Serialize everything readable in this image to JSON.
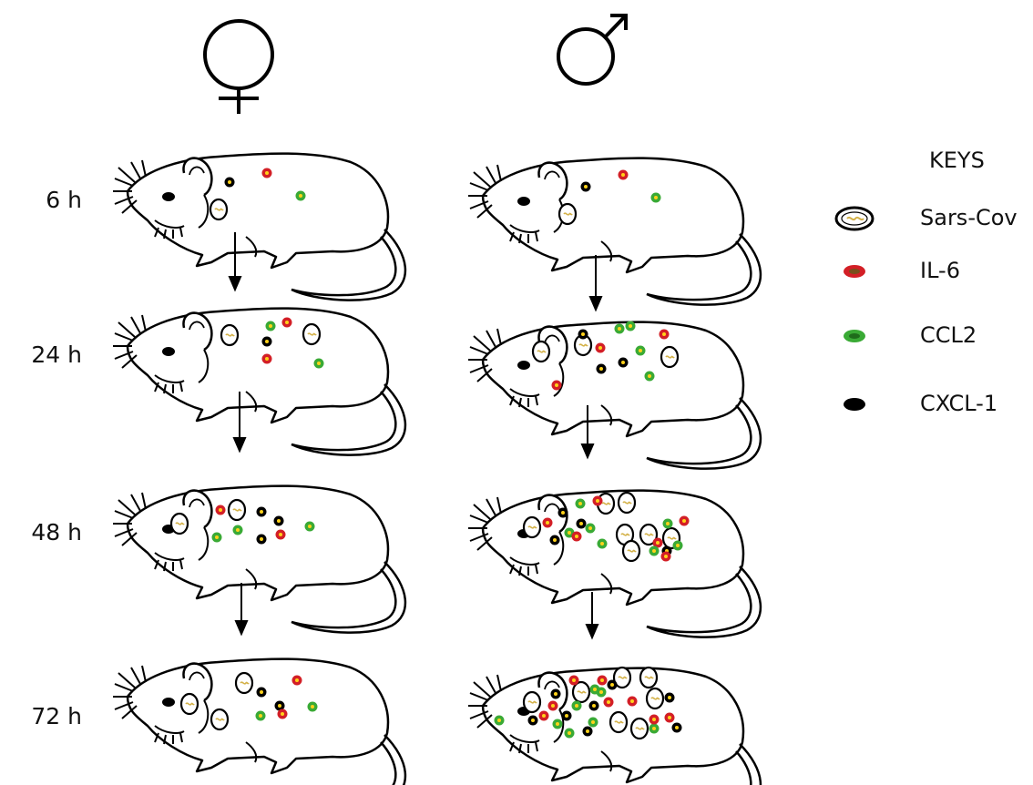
{
  "columns": [
    {
      "symbol": "female-symbol",
      "label": ""
    },
    {
      "symbol": "male-symbol",
      "label": ""
    }
  ],
  "timepoints": [
    "6 h",
    "24 h",
    "48 h",
    "72 h"
  ],
  "keys": {
    "title": "KEYS",
    "items": [
      {
        "id": "sars",
        "label": "Sars-Cov",
        "shape": "open-oval-with-squiggle",
        "color": "#e9c96a"
      },
      {
        "id": "il6",
        "label": "IL-6",
        "shape": "filled-oval",
        "color": "#d31f26"
      },
      {
        "id": "ccl2",
        "label": "CCL2",
        "shape": "filled-oval",
        "color": "#3aaa35"
      },
      {
        "id": "cxcl1",
        "label": "CXCL-1",
        "shape": "filled-oval",
        "color": "#000000"
      }
    ]
  },
  "legend_colors": {
    "il6": "#d31f26",
    "ccl2": "#3aaa35",
    "cxcl1": "#000000",
    "core": "#ffd21a",
    "virus_squiggle": "#d4b24a"
  }
}
